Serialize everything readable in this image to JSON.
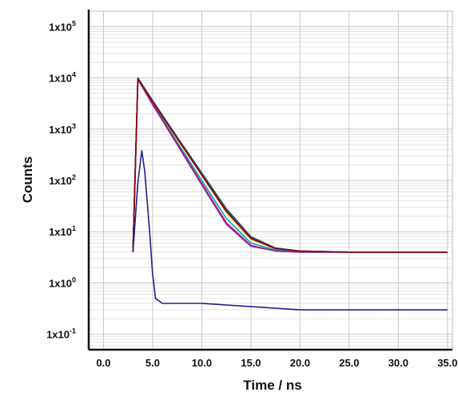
{
  "chart_data": {
    "type": "line",
    "xlabel": "Time / ns",
    "ylabel": "Counts",
    "xlim": [
      -1.5,
      35.5
    ],
    "ylim_log10": [
      -1.3,
      5.3
    ],
    "y_scale": "log",
    "grid": true,
    "x_ticks": [
      {
        "value": 0,
        "label": "0.0"
      },
      {
        "value": 5,
        "label": "5.0"
      },
      {
        "value": 10,
        "label": "10.0"
      },
      {
        "value": 15,
        "label": "15.0"
      },
      {
        "value": 20,
        "label": "20.0"
      },
      {
        "value": 25,
        "label": "25.0"
      },
      {
        "value": 30,
        "label": "30.0"
      },
      {
        "value": 35,
        "label": "35.0"
      }
    ],
    "y_ticks": [
      {
        "value": 0.1,
        "base": "1x10",
        "exp": "-1"
      },
      {
        "value": 1,
        "base": "1x10",
        "exp": "0"
      },
      {
        "value": 10,
        "base": "1x10",
        "exp": "1"
      },
      {
        "value": 100,
        "base": "1x10",
        "exp": "2"
      },
      {
        "value": 1000,
        "base": "1x10",
        "exp": "3"
      },
      {
        "value": 10000,
        "base": "1x10",
        "exp": "4"
      },
      {
        "value": 100000,
        "base": "1x10",
        "exp": "5"
      }
    ],
    "series": [
      {
        "color": "#1f3f8f",
        "points": [
          [
            3.0,
            4
          ],
          [
            3.5,
            10000
          ],
          [
            5.0,
            3600
          ],
          [
            7.5,
            700
          ],
          [
            10.0,
            140
          ],
          [
            12.5,
            28
          ],
          [
            15.0,
            8
          ],
          [
            17.5,
            4.8
          ],
          [
            20.0,
            4.2
          ],
          [
            25.0,
            4.0
          ],
          [
            30.0,
            4.0
          ],
          [
            35.0,
            4.0
          ]
        ]
      },
      {
        "color": "#2e7d32",
        "points": [
          [
            3.0,
            4
          ],
          [
            3.5,
            9800
          ],
          [
            5.0,
            3500
          ],
          [
            7.5,
            680
          ],
          [
            10.0,
            132
          ],
          [
            12.5,
            26
          ],
          [
            15.0,
            7.6
          ],
          [
            17.5,
            4.7
          ],
          [
            20.0,
            4.1
          ],
          [
            25.0,
            4.0
          ],
          [
            30.0,
            4.0
          ],
          [
            35.0,
            4.0
          ]
        ]
      },
      {
        "color": "#e3a600",
        "points": [
          [
            3.0,
            4
          ],
          [
            3.5,
            9600
          ],
          [
            5.0,
            3400
          ],
          [
            7.5,
            650
          ],
          [
            10.0,
            125
          ],
          [
            12.5,
            24
          ],
          [
            15.0,
            7.2
          ],
          [
            17.5,
            4.6
          ],
          [
            20.0,
            4.1
          ],
          [
            25.0,
            4.0
          ],
          [
            30.0,
            4.0
          ],
          [
            35.0,
            4.0
          ]
        ]
      },
      {
        "color": "#00a5b5",
        "points": [
          [
            3.0,
            4
          ],
          [
            3.5,
            9500
          ],
          [
            5.0,
            3200
          ],
          [
            7.5,
            560
          ],
          [
            10.0,
            100
          ],
          [
            12.5,
            18
          ],
          [
            15.0,
            6
          ],
          [
            17.5,
            4.4
          ],
          [
            20.0,
            4.0
          ],
          [
            25.0,
            4.0
          ],
          [
            30.0,
            4.0
          ],
          [
            35.0,
            4.0
          ]
        ]
      },
      {
        "color": "#c2185b",
        "points": [
          [
            3.0,
            4
          ],
          [
            3.5,
            9400
          ],
          [
            5.0,
            3100
          ],
          [
            7.5,
            520
          ],
          [
            10.0,
            88
          ],
          [
            12.5,
            15
          ],
          [
            15.0,
            5.4
          ],
          [
            17.5,
            4.2
          ],
          [
            20.0,
            4.0
          ],
          [
            25.0,
            4.0
          ],
          [
            30.0,
            4.0
          ],
          [
            35.0,
            4.0
          ]
        ]
      },
      {
        "color": "#8e24aa",
        "points": [
          [
            3.0,
            4
          ],
          [
            3.5,
            9300
          ],
          [
            5.0,
            3000
          ],
          [
            7.5,
            500
          ],
          [
            10.0,
            82
          ],
          [
            12.5,
            14
          ],
          [
            15.0,
            5.2
          ],
          [
            17.5,
            4.2
          ],
          [
            20.0,
            4.0
          ],
          [
            25.0,
            4.0
          ],
          [
            30.0,
            4.0
          ],
          [
            35.0,
            4.0
          ]
        ]
      },
      {
        "color": "#8b0000",
        "points": [
          [
            3.0,
            4
          ],
          [
            3.5,
            9700
          ],
          [
            5.0,
            3450
          ],
          [
            7.5,
            660
          ],
          [
            10.0,
            128
          ],
          [
            12.5,
            25
          ],
          [
            15.0,
            7.4
          ],
          [
            17.5,
            4.7
          ],
          [
            20.0,
            4.2
          ],
          [
            25.0,
            4.0
          ],
          [
            30.0,
            4.0
          ],
          [
            35.0,
            4.0
          ]
        ]
      },
      {
        "color": "#1f1f8f",
        "points": [
          [
            3.0,
            4
          ],
          [
            3.5,
            90
          ],
          [
            3.9,
            380
          ],
          [
            4.2,
            150
          ],
          [
            4.7,
            10
          ],
          [
            5.0,
            1.5
          ],
          [
            5.3,
            0.5
          ],
          [
            6.0,
            0.4
          ],
          [
            10.0,
            0.4
          ],
          [
            20.0,
            0.3
          ],
          [
            35.0,
            0.3
          ]
        ]
      }
    ]
  }
}
